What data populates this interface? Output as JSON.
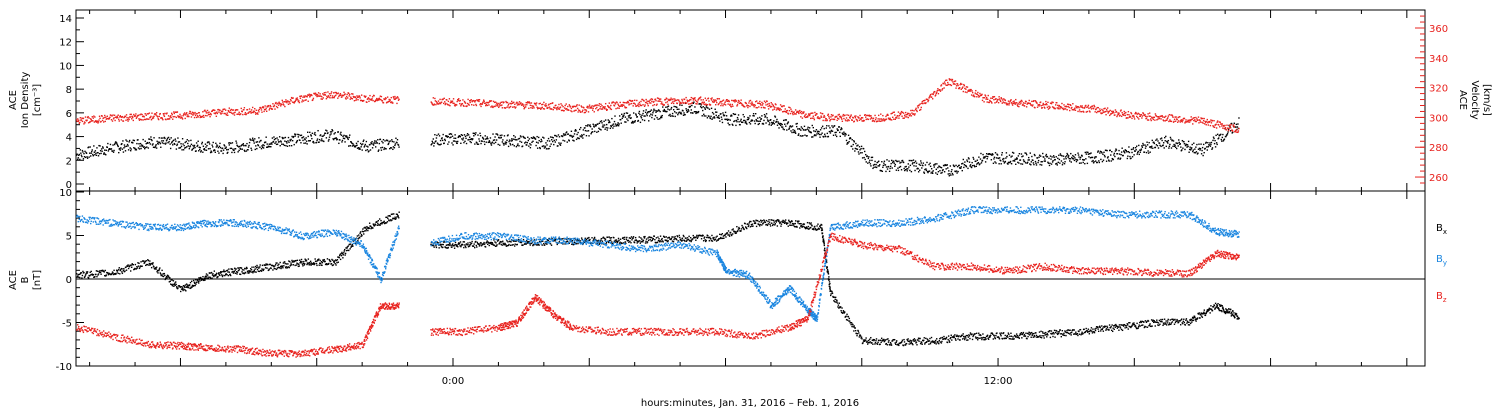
{
  "colors": {
    "black": "#000000",
    "red": "#e8231f",
    "blue": "#1b86e0"
  },
  "chart_data": [
    {
      "type": "scatter",
      "panel": "top",
      "ylabel_left": [
        "ACE",
        "Ion Density",
        "[cm⁻³]"
      ],
      "ylabel_right": [
        "ACE",
        "Velocity",
        "[km/s]"
      ],
      "ylim_left": [
        0,
        14
      ],
      "ylim_right": [
        250,
        370
      ],
      "yticks_left": [
        "0",
        "2",
        "4",
        "6",
        "8",
        "10",
        "12",
        "14"
      ],
      "yticks_right": [
        "260",
        "280",
        "300",
        "320",
        "340",
        "360"
      ],
      "xlim_hours": [
        -8.3,
        21.4
      ],
      "series": [
        {
          "axis": "left",
          "color": "black",
          "x": [
            -8.3,
            -7.5,
            -6.7,
            -5.9,
            -5.1,
            -4.3,
            -3.5,
            -2.7,
            -1.9,
            -1.1,
            -0.3,
            0.5,
            1.3,
            2.1,
            2.9,
            3.7,
            4.5,
            5.3,
            6.1,
            6.9,
            7.7,
            8.5,
            9.3,
            10.1,
            10.9,
            11.7,
            12.5,
            13.3,
            14.1,
            14.9,
            15.7,
            16.5,
            17.3
          ],
          "y": [
            2.5,
            3.1,
            3.6,
            3.4,
            3.0,
            3.5,
            3.8,
            4.2,
            3.2,
            3.6,
            3.8,
            3.9,
            3.7,
            3.5,
            4.5,
            5.5,
            6.0,
            6.5,
            5.5,
            5.5,
            4.5,
            4.5,
            1.6,
            1.6,
            1.2,
            2.3,
            2.2,
            2.1,
            2.3,
            2.7,
            3.6,
            2.9,
            5.2
          ]
        },
        {
          "axis": "right",
          "color": "red",
          "x": [
            -8.3,
            -7.5,
            -6.7,
            -5.9,
            -5.1,
            -4.3,
            -3.5,
            -2.7,
            -1.9,
            -1.1,
            -0.3,
            0.5,
            1.3,
            2.1,
            2.9,
            3.7,
            4.5,
            5.3,
            6.1,
            6.9,
            7.7,
            8.5,
            9.3,
            10.1,
            10.9,
            11.7,
            12.5,
            13.3,
            14.1,
            14.9,
            15.7,
            16.5,
            17.3
          ],
          "y": [
            298,
            300,
            301,
            302,
            304,
            305,
            312,
            316,
            313,
            312,
            311,
            310,
            309,
            308,
            306,
            309,
            311,
            312,
            310,
            309,
            302,
            300,
            300,
            303,
            325,
            313,
            310,
            308,
            306,
            302,
            300,
            298,
            292
          ]
        }
      ]
    },
    {
      "type": "scatter",
      "panel": "bottom",
      "ylabel": [
        "ACE",
        "B",
        "[nT]"
      ],
      "ylim": [
        -10,
        10
      ],
      "yticks": [
        "-10",
        "-5",
        "0",
        "5",
        "10"
      ],
      "xlim_hours": [
        -8.3,
        21.4
      ],
      "xticks": [
        "0:00",
        "12:00"
      ],
      "xlabel": "hours:minutes, Jan. 31, 2016 – Feb.  1, 2016",
      "series": [
        {
          "name": "Bx",
          "color": "black",
          "x": [
            -8.3,
            -7.5,
            -6.7,
            -6.0,
            -5.4,
            -4.7,
            -4.0,
            -3.3,
            -2.6,
            -1.9,
            -1.2,
            -0.5,
            0.2,
            1.0,
            1.8,
            2.6,
            3.4,
            4.2,
            5.0,
            5.8,
            6.6,
            7.4,
            8.1,
            8.3,
            9.0,
            9.8,
            10.6,
            11.4,
            12.2,
            13.0,
            13.8,
            14.6,
            15.4,
            16.2,
            16.8,
            17.3
          ],
          "y": [
            0.5,
            0.8,
            2.0,
            -1.2,
            0.5,
            1.0,
            1.5,
            2.0,
            2.0,
            6.0,
            7.5,
            4.0,
            4.0,
            4.2,
            4.3,
            4.4,
            4.5,
            4.6,
            4.7,
            4.8,
            6.5,
            6.5,
            6.0,
            -1.5,
            -7.0,
            -7.2,
            -7.0,
            -6.5,
            -6.5,
            -6.3,
            -6.0,
            -5.5,
            -5.0,
            -4.8,
            -3.0,
            -4.3
          ]
        },
        {
          "name": "By",
          "color": "blue",
          "x": [
            -8.3,
            -7.5,
            -6.7,
            -6.0,
            -5.4,
            -4.7,
            -4.0,
            -3.3,
            -2.6,
            -2.0,
            -1.6,
            -1.2,
            -0.6,
            0.2,
            1.0,
            1.8,
            2.6,
            3.4,
            4.2,
            5.0,
            5.8,
            6.0,
            6.5,
            7.0,
            7.4,
            7.8,
            8.0,
            8.3,
            9.0,
            9.8,
            10.6,
            11.4,
            12.2,
            13.0,
            13.8,
            14.6,
            15.4,
            16.2,
            16.8,
            17.3
          ],
          "y": [
            7.0,
            6.5,
            6.0,
            6.0,
            6.5,
            6.5,
            6.0,
            5.0,
            5.5,
            4.0,
            0.0,
            6.0,
            4.0,
            5.0,
            5.0,
            4.5,
            4.5,
            4.0,
            3.5,
            4.0,
            3.0,
            1.0,
            0.5,
            -3.0,
            -1.0,
            -3.5,
            -4.5,
            6.0,
            6.5,
            6.5,
            7.0,
            8.0,
            8.0,
            8.0,
            8.0,
            7.5,
            7.5,
            7.5,
            5.5,
            5.2
          ]
        },
        {
          "name": "Bz",
          "color": "red",
          "x": [
            -8.3,
            -7.5,
            -6.7,
            -6.0,
            -5.4,
            -4.7,
            -4.0,
            -3.3,
            -2.6,
            -2.0,
            -1.6,
            -1.2,
            -0.9,
            -0.5,
            0.2,
            1.0,
            1.4,
            1.8,
            2.2,
            2.6,
            3.4,
            4.2,
            5.0,
            5.8,
            6.6,
            7.4,
            7.8,
            8.3,
            9.0,
            9.8,
            10.6,
            11.4,
            12.2,
            13.0,
            13.8,
            14.6,
            15.4,
            16.2,
            16.8,
            17.3
          ],
          "y": [
            -5.5,
            -6.5,
            -7.5,
            -7.6,
            -7.8,
            -8.0,
            -8.5,
            -8.5,
            -8.0,
            -7.5,
            -3.0,
            -3.0,
            -6.0,
            -6.0,
            -6.0,
            -5.5,
            -5.0,
            -2.0,
            -4.0,
            -5.5,
            -6.0,
            -6.0,
            -6.0,
            -6.0,
            -6.5,
            -5.5,
            -4.5,
            5.0,
            4.0,
            3.5,
            1.5,
            1.5,
            1.0,
            1.5,
            1.0,
            1.0,
            0.8,
            0.7,
            3.0,
            2.5
          ]
        }
      ],
      "legend": [
        "B",
        "B",
        "B"
      ],
      "legend_sub": [
        "x",
        "y",
        "z"
      ]
    }
  ]
}
